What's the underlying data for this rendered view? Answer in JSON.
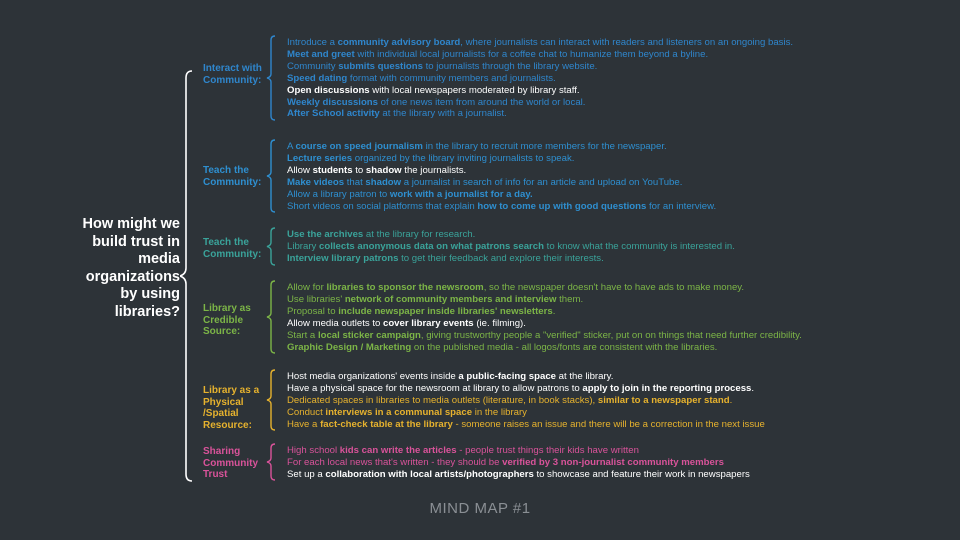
{
  "question": "How might we build trust in media organizations by using libraries?",
  "footer": "MIND MAP #1",
  "colors": {
    "background": "#2d3338",
    "interact": "#2f86cc",
    "teach": "#2e8fd0",
    "teach2": "#3aa39a",
    "credible": "#7cb547",
    "physical": "#e6b22e",
    "sharing": "#d9539a",
    "white": "#ffffff"
  },
  "categories": [
    {
      "label": "Interact with Community:",
      "items": [
        [
          [
            "n",
            "Introduce a "
          ],
          [
            "b",
            "community advisory board"
          ],
          [
            "n",
            ", where journalists can interact with readers and listeners on an ongoing basis."
          ]
        ],
        [
          [
            "b",
            "Meet and greet"
          ],
          [
            "n",
            " with individual local journalists for a coffee chat to humanize them beyond a byline."
          ]
        ],
        [
          [
            "n",
            "Community "
          ],
          [
            "b",
            "submits questions"
          ],
          [
            "n",
            " to journalists through the library website."
          ]
        ],
        [
          [
            "b",
            "Speed dating"
          ],
          [
            "n",
            " format with community members and journalists."
          ]
        ],
        [
          [
            "bw",
            "Open discussions"
          ],
          [
            "w",
            " with local newspapers moderated by library staff."
          ]
        ],
        [
          [
            "b",
            "Weekly discussions"
          ],
          [
            "n",
            " of one news item from around the world or local."
          ]
        ],
        [
          [
            "b",
            "After School activity"
          ],
          [
            "n",
            " at the library with a journalist."
          ]
        ]
      ]
    },
    {
      "label": "Teach the Community:",
      "items": [
        [
          [
            "n",
            "A "
          ],
          [
            "b",
            "course on speed journalism"
          ],
          [
            "n",
            " in the library to recruit more members for the newspaper."
          ]
        ],
        [
          [
            "b",
            "Lecture series"
          ],
          [
            "n",
            " organized by the library inviting journalists to speak."
          ]
        ],
        [
          [
            "w",
            "Allow "
          ],
          [
            "bw",
            "students"
          ],
          [
            "w",
            " to "
          ],
          [
            "bw",
            "shadow"
          ],
          [
            "w",
            " the journalists."
          ]
        ],
        [
          [
            "b",
            "Make videos"
          ],
          [
            "n",
            " that "
          ],
          [
            "b",
            "shadow"
          ],
          [
            "n",
            " a journalist in search of info for an article and upload on YouTube."
          ]
        ],
        [
          [
            "n",
            "Allow a library patron to "
          ],
          [
            "b",
            "work with a journalist for a day."
          ]
        ],
        [
          [
            "n",
            "Short videos on social platforms that explain "
          ],
          [
            "b",
            "how to come up with good questions"
          ],
          [
            "n",
            " for an interview."
          ]
        ]
      ]
    },
    {
      "label": "Teach the Community:",
      "items": [
        [
          [
            "b",
            "Use the archives"
          ],
          [
            "n",
            " at the library for research."
          ]
        ],
        [
          [
            "n",
            "Library "
          ],
          [
            "b",
            "collects anonymous data on what patrons search"
          ],
          [
            "n",
            " to know what the community is interested in."
          ]
        ],
        [
          [
            "b",
            "Interview library patrons"
          ],
          [
            "n",
            " to get their feedback and explore their interests."
          ]
        ]
      ]
    },
    {
      "label": "Library as Credible Source:",
      "items": [
        [
          [
            "n",
            "Allow for "
          ],
          [
            "b",
            "libraries to sponsor the newsroom"
          ],
          [
            "n",
            ", so the newspaper doesn't have to have ads to make money."
          ]
        ],
        [
          [
            "n",
            "Use libraries' "
          ],
          [
            "b",
            "network of community members and interview"
          ],
          [
            "n",
            " them."
          ]
        ],
        [
          [
            "n",
            "Proposal to "
          ],
          [
            "b",
            "include newspaper inside libraries' newsletters"
          ],
          [
            "n",
            "."
          ]
        ],
        [
          [
            "w",
            "Allow media outlets to "
          ],
          [
            "bw",
            "cover library events"
          ],
          [
            "w",
            " (ie. filming)."
          ]
        ],
        [
          [
            "n",
            "Start a "
          ],
          [
            "b",
            "local sticker campaign"
          ],
          [
            "n",
            ", giving trustworthy people  a \"verified\" sticker, put on on things that need further credibility."
          ]
        ],
        [
          [
            "b",
            "Graphic Design / Marketing"
          ],
          [
            "n",
            " on the published media - all logos/fonts are consistent with the libraries."
          ]
        ]
      ]
    },
    {
      "label": "Library as a Physical /Spatial Resource:",
      "items": [
        [
          [
            "w",
            "Host media organizations' events inside "
          ],
          [
            "bw",
            "a public-facing space"
          ],
          [
            "w",
            " at the library."
          ]
        ],
        [
          [
            "w",
            "Have a physical space for the newsroom at library to allow patrons to "
          ],
          [
            "bw",
            "apply to join in the reporting process"
          ],
          [
            "w",
            "."
          ]
        ],
        [
          [
            "n",
            "Dedicated spaces in libraries to media outlets (literature, in book stacks), "
          ],
          [
            "b",
            "similar to a newspaper stand"
          ],
          [
            "n",
            "."
          ]
        ],
        [
          [
            "n",
            "Conduct "
          ],
          [
            "b",
            "interviews in a communal space"
          ],
          [
            "n",
            " in the library"
          ]
        ],
        [
          [
            "n",
            "Have a "
          ],
          [
            "b",
            "fact-check table at the library"
          ],
          [
            "n",
            " - someone raises an issue and there will be a correction in the next issue"
          ]
        ]
      ]
    },
    {
      "label": "Sharing Community Trust",
      "items": [
        [
          [
            "n",
            "High school "
          ],
          [
            "b",
            "kids can write the articles"
          ],
          [
            "n",
            " - people trust things their kids have written"
          ]
        ],
        [
          [
            "n",
            "For each local news that's written - they should be "
          ],
          [
            "b",
            "verified by 3 non-journalist community members"
          ]
        ],
        [
          [
            "w",
            "Set up a "
          ],
          [
            "bw",
            "collaboration with local artists/photographers"
          ],
          [
            "w",
            " to showcase and feature their work in newspapers"
          ]
        ]
      ]
    }
  ]
}
